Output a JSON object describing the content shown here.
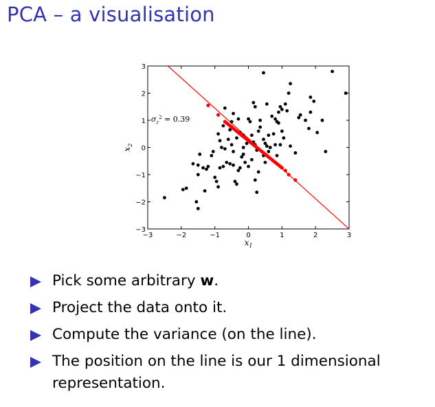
{
  "slide": {
    "title": "PCA – a visualisation",
    "bullets": [
      {
        "parts": [
          {
            "text": "Pick some arbitrary "
          },
          {
            "text": "w",
            "bold": true
          },
          {
            "text": "."
          }
        ]
      },
      {
        "parts": [
          {
            "text": "Project the data onto it."
          }
        ]
      },
      {
        "parts": [
          {
            "text": "Compute the variance (on the line)."
          }
        ]
      },
      {
        "parts": [
          {
            "text": "The position on the line is our 1 dimensional representation."
          }
        ]
      }
    ],
    "accent_color": "#3333b2"
  },
  "chart_data": {
    "type": "scatter",
    "title": "",
    "xlabel": "x1",
    "ylabel": "x2",
    "xlim": [
      -3,
      3
    ],
    "ylim": [
      -3,
      3
    ],
    "xticks": [
      -3,
      -2,
      -1,
      0,
      1,
      2,
      3
    ],
    "yticks": [
      -3,
      -2,
      -1,
      0,
      1,
      2,
      3
    ],
    "grid": false,
    "annotation": {
      "text": "σ_z² = 0.39",
      "x": -2.9,
      "y": 0.95
    },
    "series": [
      {
        "kind": "points",
        "color": "#000000",
        "points": [
          [
            -2.5,
            -1.85
          ],
          [
            -1.95,
            -1.55
          ],
          [
            -1.85,
            -1.5
          ],
          [
            -1.55,
            -2.0
          ],
          [
            -1.5,
            -2.25
          ],
          [
            -1.3,
            -1.6
          ],
          [
            -1.65,
            -0.6
          ],
          [
            -1.5,
            -0.65
          ],
          [
            -1.45,
            -0.25
          ],
          [
            -1.5,
            -1.0
          ],
          [
            -1.35,
            -0.75
          ],
          [
            -1.2,
            -0.7
          ],
          [
            -1.1,
            -0.3
          ],
          [
            -1.05,
            -0.15
          ],
          [
            -1.0,
            -1.1
          ],
          [
            -0.95,
            -1.25
          ],
          [
            -0.9,
            -1.45
          ],
          [
            -0.85,
            -0.75
          ],
          [
            -0.75,
            -0.7
          ],
          [
            -0.7,
            -0.05
          ],
          [
            -0.65,
            -0.55
          ],
          [
            -0.55,
            -0.6
          ],
          [
            -0.45,
            -0.65
          ],
          [
            -0.4,
            -1.25
          ],
          [
            -0.35,
            -1.35
          ],
          [
            -0.25,
            -0.75
          ],
          [
            -0.2,
            -0.35
          ],
          [
            -0.15,
            -0.25
          ],
          [
            -0.1,
            -0.55
          ],
          [
            0.0,
            -0.7
          ],
          [
            0.2,
            -1.2
          ],
          [
            0.25,
            -1.65
          ],
          [
            0.3,
            -0.9
          ],
          [
            0.45,
            -0.3
          ],
          [
            0.5,
            -0.55
          ],
          [
            0.6,
            -0.15
          ],
          [
            -0.9,
            0.5
          ],
          [
            -0.85,
            0.25
          ],
          [
            -0.75,
            0.8
          ],
          [
            -0.6,
            0.3
          ],
          [
            -0.55,
            0.65
          ],
          [
            -0.5,
            0.1
          ],
          [
            -0.45,
            -0.15
          ],
          [
            -0.35,
            0.35
          ],
          [
            -0.3,
            1.05
          ],
          [
            -0.25,
            0.55
          ],
          [
            -0.15,
            0.0
          ],
          [
            -0.05,
            0.15
          ],
          [
            0.05,
            0.95
          ],
          [
            0.1,
            0.45
          ],
          [
            0.15,
            0.2
          ],
          [
            0.2,
            0.1
          ],
          [
            0.25,
            -0.1
          ],
          [
            0.3,
            0.6
          ],
          [
            0.35,
            0.75
          ],
          [
            0.45,
            0.3
          ],
          [
            0.5,
            0.15
          ],
          [
            0.55,
            0.05
          ],
          [
            0.6,
            0.45
          ],
          [
            0.65,
            0.0
          ],
          [
            0.75,
            0.5
          ],
          [
            0.8,
            1.05
          ],
          [
            0.85,
            0.95
          ],
          [
            0.9,
            0.9
          ],
          [
            0.95,
            0.1
          ],
          [
            1.0,
            0.6
          ],
          [
            1.05,
            0.35
          ],
          [
            0.8,
            0.1
          ],
          [
            0.85,
            -0.3
          ],
          [
            0.9,
            1.3
          ],
          [
            1.0,
            1.4
          ],
          [
            1.1,
            1.6
          ],
          [
            1.2,
            2.0
          ],
          [
            0.95,
            1.5
          ],
          [
            1.15,
            1.35
          ],
          [
            1.25,
            0.05
          ],
          [
            1.4,
            -0.2
          ],
          [
            1.5,
            1.1
          ],
          [
            1.55,
            1.2
          ],
          [
            1.7,
            1.0
          ],
          [
            1.8,
            0.7
          ],
          [
            1.85,
            1.3
          ],
          [
            1.85,
            1.85
          ],
          [
            1.95,
            1.7
          ],
          [
            2.05,
            0.55
          ],
          [
            2.2,
            1.0
          ],
          [
            2.3,
            -0.15
          ],
          [
            2.5,
            2.8
          ],
          [
            2.9,
            2.0
          ],
          [
            0.45,
            2.75
          ],
          [
            1.25,
            2.35
          ],
          [
            0.15,
            1.65
          ],
          [
            0.2,
            1.5
          ],
          [
            0.55,
            1.6
          ],
          [
            -0.45,
            1.25
          ],
          [
            -0.7,
            1.45
          ],
          [
            0.0,
            1.05
          ],
          [
            -0.5,
            0.95
          ],
          [
            0.35,
            1.0
          ],
          [
            0.7,
            1.15
          ],
          [
            -0.3,
            -0.85
          ],
          [
            0.1,
            -0.45
          ],
          [
            -0.8,
            0.0
          ],
          [
            -1.25,
            -0.8
          ],
          [
            -0.15,
            0.45
          ]
        ]
      },
      {
        "kind": "projected",
        "color": "#ff0000",
        "points": [
          [
            -1.2,
            1.55
          ],
          [
            -0.9,
            1.2
          ],
          [
            -0.7,
            0.95
          ],
          [
            -0.65,
            0.9
          ],
          [
            -0.6,
            0.85
          ],
          [
            -0.55,
            0.8
          ],
          [
            -0.5,
            0.75
          ],
          [
            -0.45,
            0.7
          ],
          [
            -0.4,
            0.65
          ],
          [
            -0.35,
            0.6
          ],
          [
            -0.3,
            0.55
          ],
          [
            -0.25,
            0.5
          ],
          [
            -0.2,
            0.45
          ],
          [
            -0.15,
            0.4
          ],
          [
            -0.1,
            0.35
          ],
          [
            -0.05,
            0.3
          ],
          [
            0.0,
            0.25
          ],
          [
            0.05,
            0.2
          ],
          [
            0.1,
            0.15
          ],
          [
            0.15,
            0.1
          ],
          [
            0.2,
            0.05
          ],
          [
            0.25,
            0.0
          ],
          [
            0.3,
            -0.05
          ],
          [
            0.35,
            -0.1
          ],
          [
            0.4,
            -0.15
          ],
          [
            0.45,
            -0.2
          ],
          [
            0.5,
            -0.25
          ],
          [
            0.55,
            -0.3
          ],
          [
            0.6,
            -0.35
          ],
          [
            0.65,
            -0.4
          ],
          [
            0.7,
            -0.45
          ],
          [
            0.75,
            -0.5
          ],
          [
            0.8,
            -0.55
          ],
          [
            0.85,
            -0.6
          ],
          [
            0.9,
            -0.65
          ],
          [
            0.95,
            -0.7
          ],
          [
            1.0,
            -0.75
          ],
          [
            1.1,
            -0.85
          ],
          [
            1.2,
            -1.0
          ],
          [
            1.4,
            -1.2
          ]
        ]
      },
      {
        "kind": "line",
        "color": "#ff0000",
        "points": [
          [
            -2.4,
            3.0
          ],
          [
            3.0,
            -3.0
          ]
        ]
      }
    ]
  }
}
